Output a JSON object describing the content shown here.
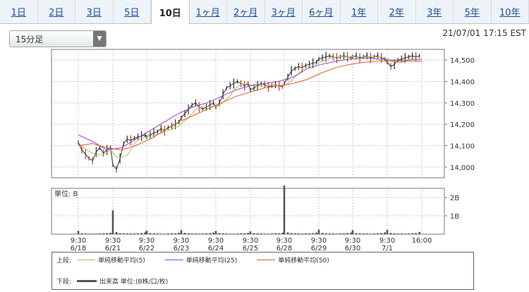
{
  "tabs": [
    {
      "label": "1日"
    },
    {
      "label": "2日"
    },
    {
      "label": "3日"
    },
    {
      "label": "5日"
    },
    {
      "label": "10日",
      "active": true
    },
    {
      "label": "1ヶ月"
    },
    {
      "label": "2ヶ月"
    },
    {
      "label": "3ヶ月"
    },
    {
      "label": "6ヶ月"
    },
    {
      "label": "1年"
    },
    {
      "label": "2年"
    },
    {
      "label": "3年"
    },
    {
      "label": "5年"
    },
    {
      "label": "10年"
    }
  ],
  "interval_select": {
    "value": "15分足"
  },
  "timestamp": "21/07/01 17:15 EST",
  "legend": {
    "upper_label": "上段:",
    "lower_label": "下段:",
    "items": [
      {
        "label": "単純移動平均(5)",
        "color": "#a8c850"
      },
      {
        "label": "単純移動平均(25)",
        "color": "#9a3fd0"
      },
      {
        "label": "単純移動平均(50)",
        "color": "#e05a30"
      }
    ],
    "volume_label": "出来高 単位:(B株/口/枚)",
    "volume_color": "#555555"
  },
  "chart_data": {
    "type": "line",
    "days": [
      "6/18",
      "6/21",
      "6/22",
      "6/23",
      "6/24",
      "6/25",
      "6/28",
      "6/29",
      "6/30",
      "7/1"
    ],
    "x_tick_labels": [
      {
        "time": "9:30",
        "date": "6/18"
      },
      {
        "time": "9:30",
        "date": "6/21"
      },
      {
        "time": "9:30",
        "date": "6/22"
      },
      {
        "time": "9:30",
        "date": "6/23"
      },
      {
        "time": "9:30",
        "date": "6/24"
      },
      {
        "time": "9:30",
        "date": "6/25"
      },
      {
        "time": "9:30",
        "date": "6/28"
      },
      {
        "time": "9:30",
        "date": "6/29"
      },
      {
        "time": "9:30",
        "date": "6/30"
      },
      {
        "time": "9:30",
        "date": "7/1"
      },
      {
        "time": "16:00",
        "date": ""
      }
    ],
    "price_yticks": [
      "14,000",
      "14,100",
      "14,200",
      "14,300",
      "14,400",
      "14,500"
    ],
    "price_ylim": [
      13950,
      14550
    ],
    "volume_unit_label": "単位: B",
    "volume_yticks": [
      "1B",
      "2B"
    ],
    "volume_ylim": [
      0,
      2.5
    ],
    "grid": true,
    "price_series": [
      {
        "day": "6/18",
        "points": [
          14115,
          14080,
          14060,
          14040,
          14030,
          14070,
          14090,
          14065,
          14080,
          14090
        ]
      },
      {
        "day": "6/21",
        "points": [
          14010,
          13990,
          14040,
          14110,
          14130,
          14125,
          14135,
          14140,
          14145,
          14150
        ]
      },
      {
        "day": "6/22",
        "points": [
          14140,
          14150,
          14160,
          14165,
          14180,
          14170,
          14185,
          14190,
          14200,
          14210
        ]
      },
      {
        "day": "6/23",
        "points": [
          14230,
          14250,
          14270,
          14290,
          14300,
          14280,
          14270,
          14280,
          14290,
          14300
        ]
      },
      {
        "day": "6/24",
        "points": [
          14280,
          14300,
          14340,
          14370,
          14380,
          14390,
          14400,
          14390,
          14380,
          14390
        ]
      },
      {
        "day": "6/25",
        "points": [
          14360,
          14370,
          14380,
          14390,
          14385,
          14375,
          14380,
          14385,
          14380,
          14375
        ]
      },
      {
        "day": "6/28",
        "points": [
          14390,
          14420,
          14450,
          14460,
          14470,
          14465,
          14475,
          14480,
          14485,
          14490
        ]
      },
      {
        "day": "6/29",
        "points": [
          14505,
          14510,
          14515,
          14520,
          14515,
          14510,
          14515,
          14520,
          14515,
          14510
        ]
      },
      {
        "day": "6/30",
        "points": [
          14515,
          14520,
          14510,
          14515,
          14520,
          14510,
          14515,
          14520,
          14510,
          14505
        ]
      },
      {
        "day": "7/1",
        "points": [
          14490,
          14470,
          14480,
          14500,
          14505,
          14510,
          14515,
          14520,
          14515,
          14520
        ]
      }
    ],
    "sma25": [
      14150,
      14120,
      14080,
      14090,
      14130,
      14170,
      14210,
      14250,
      14280,
      14300,
      14330,
      14360,
      14380,
      14390,
      14400,
      14420,
      14460,
      14480,
      14495,
      14505,
      14510,
      14505,
      14500,
      14500,
      14505
    ],
    "sma50": [
      14100,
      14110,
      14090,
      14080,
      14100,
      14130,
      14170,
      14210,
      14240,
      14270,
      14300,
      14330,
      14350,
      14370,
      14380,
      14390,
      14410,
      14440,
      14465,
      14480,
      14490,
      14495,
      14495,
      14495,
      14495
    ],
    "volume": [
      {
        "day": "6/18",
        "bars": [
          0.18,
          0.05,
          0.04,
          0.03,
          0.03,
          0.03,
          0.04,
          0.05,
          0.06,
          0.08
        ]
      },
      {
        "day": "6/21",
        "bars": [
          1.3,
          0.12,
          0.06,
          0.05,
          0.04,
          0.04,
          0.04,
          0.05,
          0.06,
          0.1
        ]
      },
      {
        "day": "6/22",
        "bars": [
          0.2,
          0.06,
          0.05,
          0.04,
          0.03,
          0.03,
          0.04,
          0.05,
          0.05,
          0.08
        ]
      },
      {
        "day": "6/23",
        "bars": [
          0.22,
          0.07,
          0.05,
          0.04,
          0.04,
          0.03,
          0.04,
          0.05,
          0.06,
          0.09
        ]
      },
      {
        "day": "6/24",
        "bars": [
          0.18,
          0.06,
          0.05,
          0.04,
          0.03,
          0.03,
          0.04,
          0.05,
          0.05,
          0.07
        ]
      },
      {
        "day": "6/25",
        "bars": [
          0.15,
          0.06,
          0.05,
          0.04,
          0.03,
          0.03,
          0.04,
          0.05,
          0.05,
          0.08
        ]
      },
      {
        "day": "6/28",
        "bars": [
          2.65,
          0.1,
          0.06,
          0.05,
          0.04,
          0.04,
          0.05,
          0.05,
          0.06,
          0.09
        ]
      },
      {
        "day": "6/29",
        "bars": [
          0.25,
          0.07,
          0.05,
          0.04,
          0.04,
          0.03,
          0.04,
          0.05,
          0.06,
          0.09
        ]
      },
      {
        "day": "6/30",
        "bars": [
          0.22,
          0.06,
          0.05,
          0.04,
          0.04,
          0.03,
          0.04,
          0.05,
          0.06,
          0.1
        ]
      },
      {
        "day": "7/1",
        "bars": [
          0.24,
          0.07,
          0.05,
          0.04,
          0.04,
          0.03,
          0.04,
          0.05,
          0.06,
          0.12
        ]
      }
    ]
  }
}
